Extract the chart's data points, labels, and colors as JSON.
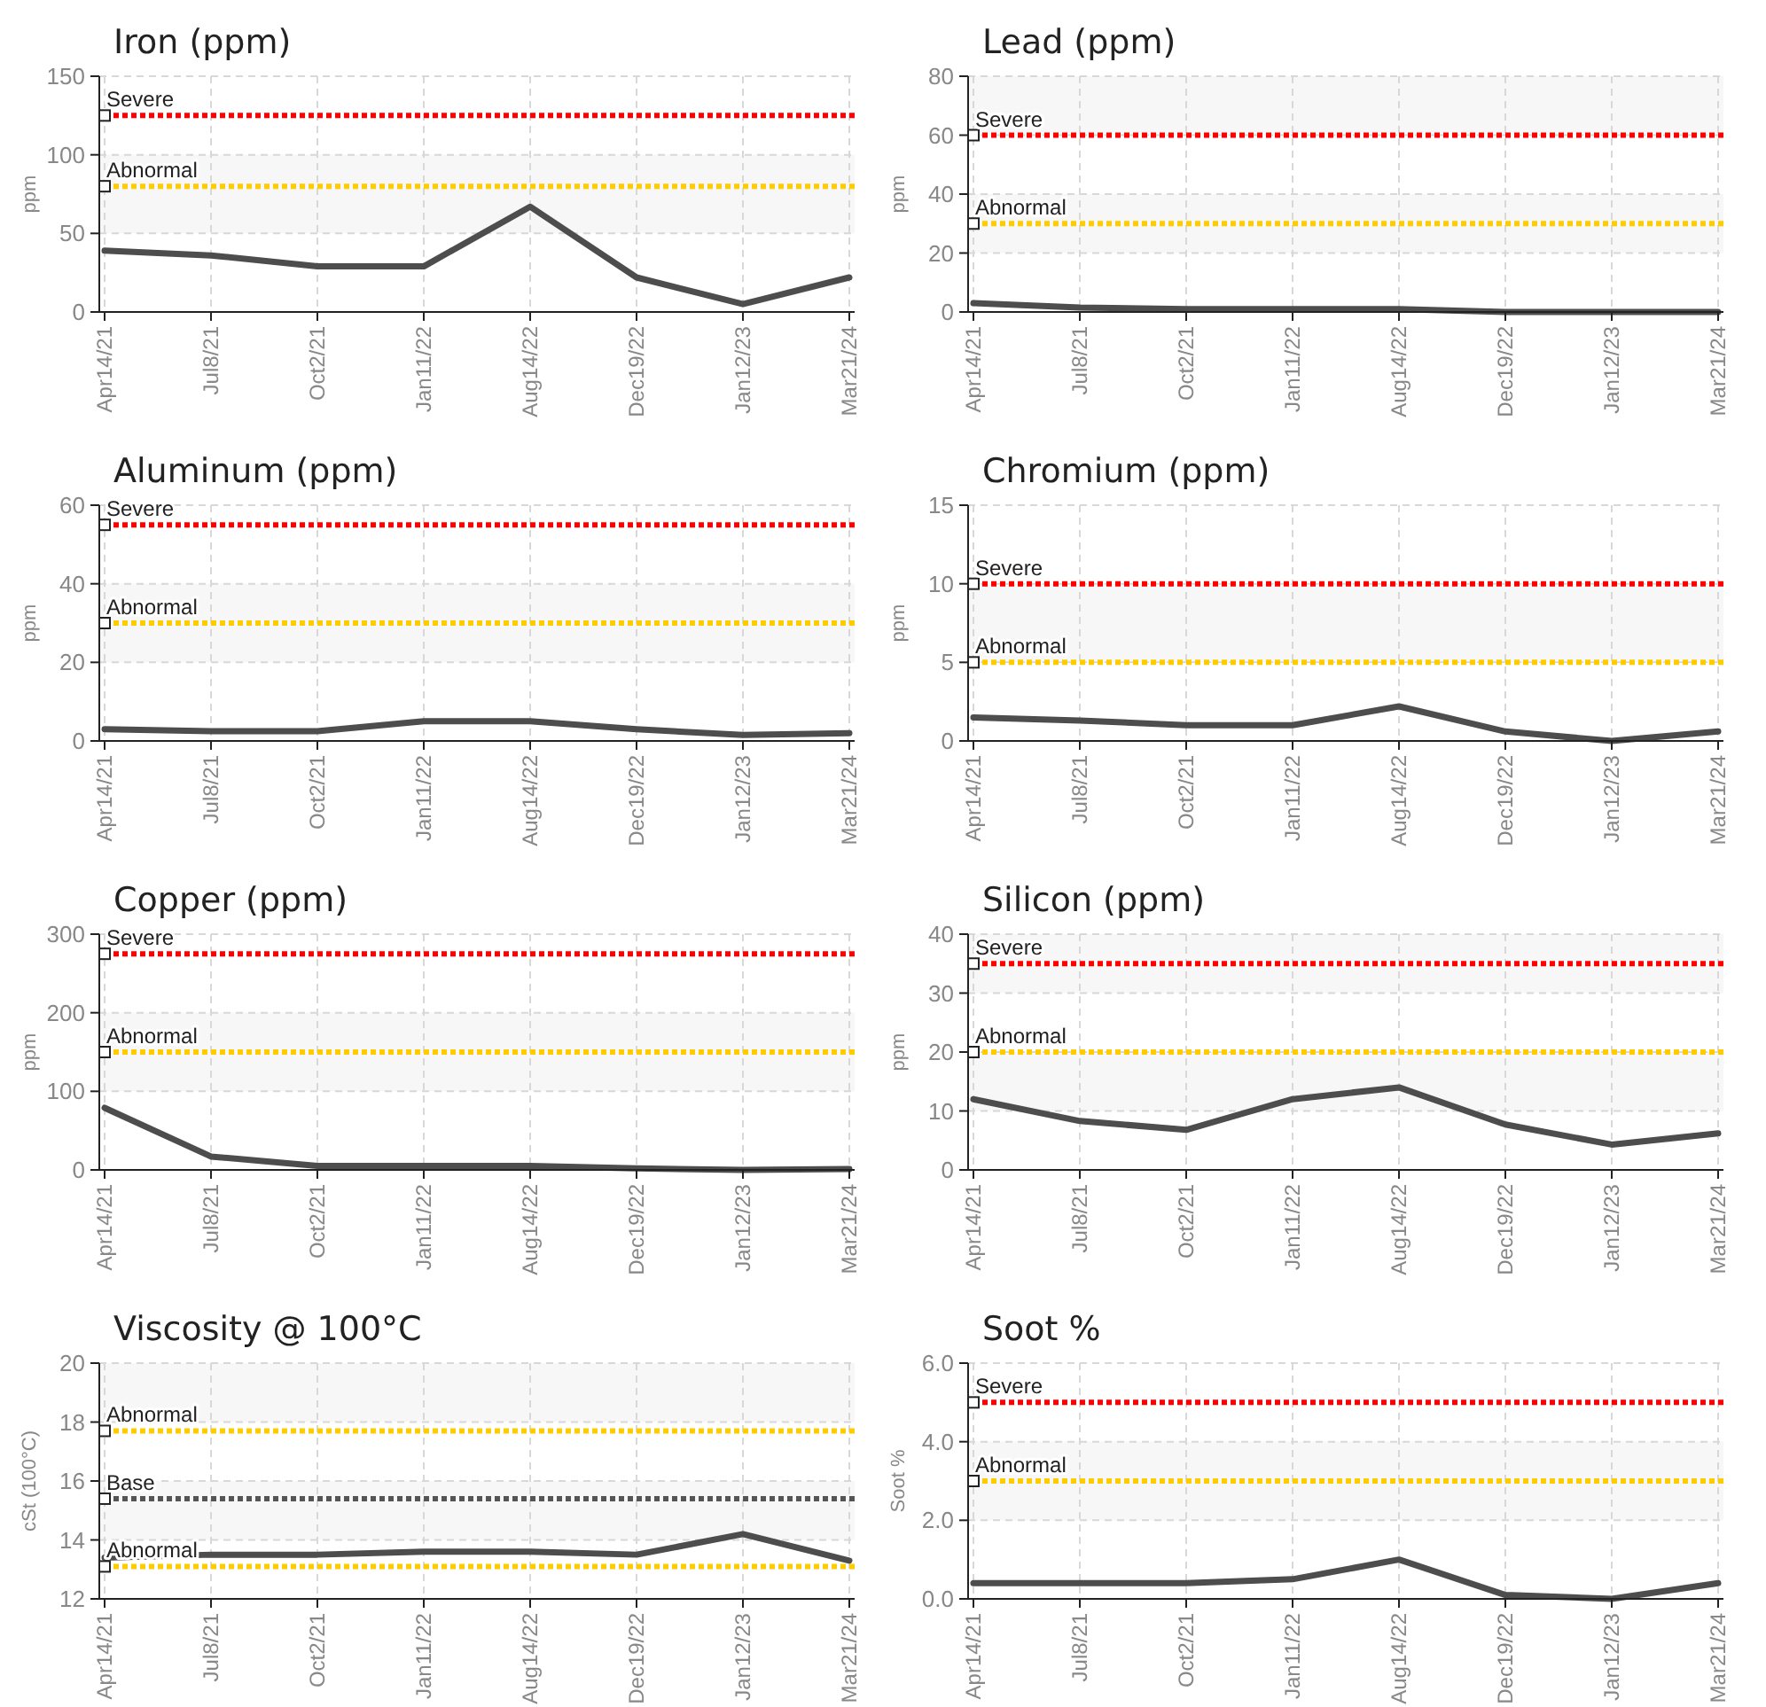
{
  "chart_data": [
    {
      "type": "line",
      "title": "Iron (ppm)",
      "ylabel": "ppm",
      "categories": [
        "Apr14/21",
        "Jul8/21",
        "Oct2/21",
        "Jan11/22",
        "Aug14/22",
        "Dec19/22",
        "Jan12/23",
        "Mar21/24"
      ],
      "series": [
        {
          "color": "#4d4d4d",
          "values": [
            39,
            36,
            29,
            29,
            67,
            22,
            5,
            22
          ]
        }
      ],
      "ylim": [
        0,
        150
      ],
      "yticks": [
        0,
        50,
        100,
        150
      ],
      "grid": true,
      "marker": "none",
      "line_style": "solid",
      "ref_lines": [
        {
          "axis": "y",
          "value": 125,
          "label": "Severe",
          "color": "#ff0000",
          "line_style": "dotted"
        },
        {
          "axis": "y",
          "value": 80,
          "label": "Abnormal",
          "color": "#ffcc00",
          "line_style": "dotted"
        }
      ],
      "bands": [
        {
          "axis": "y",
          "from": 50,
          "to": 100,
          "color": "#f7f7f7"
        }
      ]
    },
    {
      "type": "line",
      "title": "Lead (ppm)",
      "ylabel": "ppm",
      "categories": [
        "Apr14/21",
        "Jul8/21",
        "Oct2/21",
        "Jan11/22",
        "Aug14/22",
        "Dec19/22",
        "Jan12/23",
        "Mar21/24"
      ],
      "series": [
        {
          "color": "#4d4d4d",
          "values": [
            3,
            1.5,
            1,
            1,
            1,
            0,
            0,
            0
          ]
        }
      ],
      "ylim": [
        0,
        80
      ],
      "yticks": [
        0,
        20,
        40,
        60,
        80
      ],
      "grid": true,
      "marker": "none",
      "line_style": "solid",
      "ref_lines": [
        {
          "axis": "y",
          "value": 60,
          "label": "Severe",
          "color": "#ff0000",
          "line_style": "dotted"
        },
        {
          "axis": "y",
          "value": 30,
          "label": "Abnormal",
          "color": "#ffcc00",
          "line_style": "dotted"
        }
      ],
      "bands": [
        {
          "axis": "y",
          "from": 60,
          "to": 80,
          "color": "#f7f7f7"
        },
        {
          "axis": "y",
          "from": 20,
          "to": 40,
          "color": "#f7f7f7"
        }
      ]
    },
    {
      "type": "line",
      "title": "Aluminum (ppm)",
      "ylabel": "ppm",
      "categories": [
        "Apr14/21",
        "Jul8/21",
        "Oct2/21",
        "Jan11/22",
        "Aug14/22",
        "Dec19/22",
        "Jan12/23",
        "Mar21/24"
      ],
      "series": [
        {
          "color": "#4d4d4d",
          "values": [
            3,
            2.5,
            2.5,
            5,
            5,
            3,
            1.5,
            2
          ]
        }
      ],
      "ylim": [
        0,
        60
      ],
      "yticks": [
        0,
        20,
        40,
        60
      ],
      "grid": true,
      "marker": "none",
      "line_style": "solid",
      "ref_lines": [
        {
          "axis": "y",
          "value": 55,
          "label": "Severe",
          "color": "#ff0000",
          "line_style": "dotted"
        },
        {
          "axis": "y",
          "value": 30,
          "label": "Abnormal",
          "color": "#ffcc00",
          "line_style": "dotted"
        }
      ],
      "bands": [
        {
          "axis": "y",
          "from": 20,
          "to": 40,
          "color": "#f7f7f7"
        }
      ]
    },
    {
      "type": "line",
      "title": "Chromium (ppm)",
      "ylabel": "ppm",
      "categories": [
        "Apr14/21",
        "Jul8/21",
        "Oct2/21",
        "Jan11/22",
        "Aug14/22",
        "Dec19/22",
        "Jan12/23",
        "Mar21/24"
      ],
      "series": [
        {
          "color": "#4d4d4d",
          "values": [
            1.5,
            1.3,
            1,
            1,
            2.2,
            0.6,
            0,
            0.6
          ]
        }
      ],
      "ylim": [
        0,
        15
      ],
      "yticks": [
        0,
        5,
        10,
        15
      ],
      "grid": true,
      "marker": "none",
      "line_style": "solid",
      "ref_lines": [
        {
          "axis": "y",
          "value": 10,
          "label": "Severe",
          "color": "#ff0000",
          "line_style": "dotted"
        },
        {
          "axis": "y",
          "value": 5,
          "label": "Abnormal",
          "color": "#ffcc00",
          "line_style": "dotted"
        }
      ],
      "bands": [
        {
          "axis": "y",
          "from": 5,
          "to": 10,
          "color": "#f7f7f7"
        }
      ]
    },
    {
      "type": "line",
      "title": "Copper (ppm)",
      "ylabel": "ppm",
      "categories": [
        "Apr14/21",
        "Jul8/21",
        "Oct2/21",
        "Jan11/22",
        "Aug14/22",
        "Dec19/22",
        "Jan12/23",
        "Mar21/24"
      ],
      "series": [
        {
          "color": "#4d4d4d",
          "values": [
            79,
            17,
            5,
            5,
            5,
            2,
            0,
            1
          ]
        }
      ],
      "ylim": [
        0,
        300
      ],
      "yticks": [
        0,
        100,
        200,
        300
      ],
      "grid": true,
      "marker": "none",
      "line_style": "solid",
      "ref_lines": [
        {
          "axis": "y",
          "value": 275,
          "label": "Severe",
          "color": "#ff0000",
          "line_style": "dotted"
        },
        {
          "axis": "y",
          "value": 150,
          "label": "Abnormal",
          "color": "#ffcc00",
          "line_style": "dotted"
        }
      ],
      "bands": [
        {
          "axis": "y",
          "from": 100,
          "to": 200,
          "color": "#f7f7f7"
        }
      ]
    },
    {
      "type": "line",
      "title": "Silicon (ppm)",
      "ylabel": "ppm",
      "categories": [
        "Apr14/21",
        "Jul8/21",
        "Oct2/21",
        "Jan11/22",
        "Aug14/22",
        "Dec19/22",
        "Jan12/23",
        "Mar21/24"
      ],
      "series": [
        {
          "color": "#4d4d4d",
          "values": [
            12,
            8.3,
            6.8,
            12,
            14,
            7.7,
            4.3,
            6.2
          ]
        }
      ],
      "ylim": [
        0,
        40
      ],
      "yticks": [
        0,
        10,
        20,
        30,
        40
      ],
      "grid": true,
      "marker": "none",
      "line_style": "solid",
      "ref_lines": [
        {
          "axis": "y",
          "value": 35,
          "label": "Severe",
          "color": "#ff0000",
          "line_style": "dotted"
        },
        {
          "axis": "y",
          "value": 20,
          "label": "Abnormal",
          "color": "#ffcc00",
          "line_style": "dotted"
        }
      ],
      "bands": [
        {
          "axis": "y",
          "from": 30,
          "to": 40,
          "color": "#f7f7f7"
        },
        {
          "axis": "y",
          "from": 10,
          "to": 20,
          "color": "#f7f7f7"
        }
      ]
    },
    {
      "type": "line",
      "title": "Viscosity @ 100°C",
      "ylabel": "cSt (100°C)",
      "categories": [
        "Apr14/21",
        "Jul8/21",
        "Oct2/21",
        "Jan11/22",
        "Aug14/22",
        "Dec19/22",
        "Jan12/23",
        "Mar21/24"
      ],
      "series": [
        {
          "color": "#4d4d4d",
          "values": [
            13.4,
            13.5,
            13.5,
            13.6,
            13.6,
            13.5,
            14.2,
            13.3
          ]
        }
      ],
      "ylim": [
        12,
        20
      ],
      "yticks": [
        12,
        14,
        16,
        18,
        20
      ],
      "grid": true,
      "marker": "none",
      "line_style": "solid",
      "ref_lines": [
        {
          "axis": "y",
          "value": 17.7,
          "label": "Abnormal",
          "color": "#ffcc00",
          "line_style": "dotted"
        },
        {
          "axis": "y",
          "value": 15.4,
          "label": "Base",
          "color": "#555555",
          "line_style": "dotted"
        },
        {
          "axis": "y",
          "value": 13.1,
          "label": "Abnormal",
          "color": "#ffcc00",
          "line_style": "dotted"
        }
      ],
      "bands": [
        {
          "axis": "y",
          "from": 18,
          "to": 20,
          "color": "#f7f7f7"
        },
        {
          "axis": "y",
          "from": 14,
          "to": 16,
          "color": "#f7f7f7"
        }
      ]
    },
    {
      "type": "line",
      "title": "Soot %",
      "ylabel": "Soot %",
      "categories": [
        "Apr14/21",
        "Jul8/21",
        "Oct2/21",
        "Jan11/22",
        "Aug14/22",
        "Dec19/22",
        "Jan12/23",
        "Mar21/24"
      ],
      "series": [
        {
          "color": "#4d4d4d",
          "values": [
            0.4,
            0.4,
            0.4,
            0.5,
            1.0,
            0.1,
            0.0,
            0.4
          ]
        }
      ],
      "ylim": [
        0,
        6
      ],
      "yticks": [
        {
          "value": 0,
          "label": "0.0"
        },
        {
          "value": 2,
          "label": "2.0"
        },
        {
          "value": 4,
          "label": "4.0"
        },
        {
          "value": 6,
          "label": "6.0"
        }
      ],
      "grid": true,
      "marker": "none",
      "line_style": "solid",
      "ref_lines": [
        {
          "axis": "y",
          "value": 5,
          "label": "Severe",
          "color": "#ff0000",
          "line_style": "dotted"
        },
        {
          "axis": "y",
          "value": 3,
          "label": "Abnormal",
          "color": "#ffcc00",
          "line_style": "dotted"
        }
      ],
      "bands": [
        {
          "axis": "y",
          "from": 2,
          "to": 4,
          "color": "#f7f7f7"
        }
      ]
    }
  ]
}
